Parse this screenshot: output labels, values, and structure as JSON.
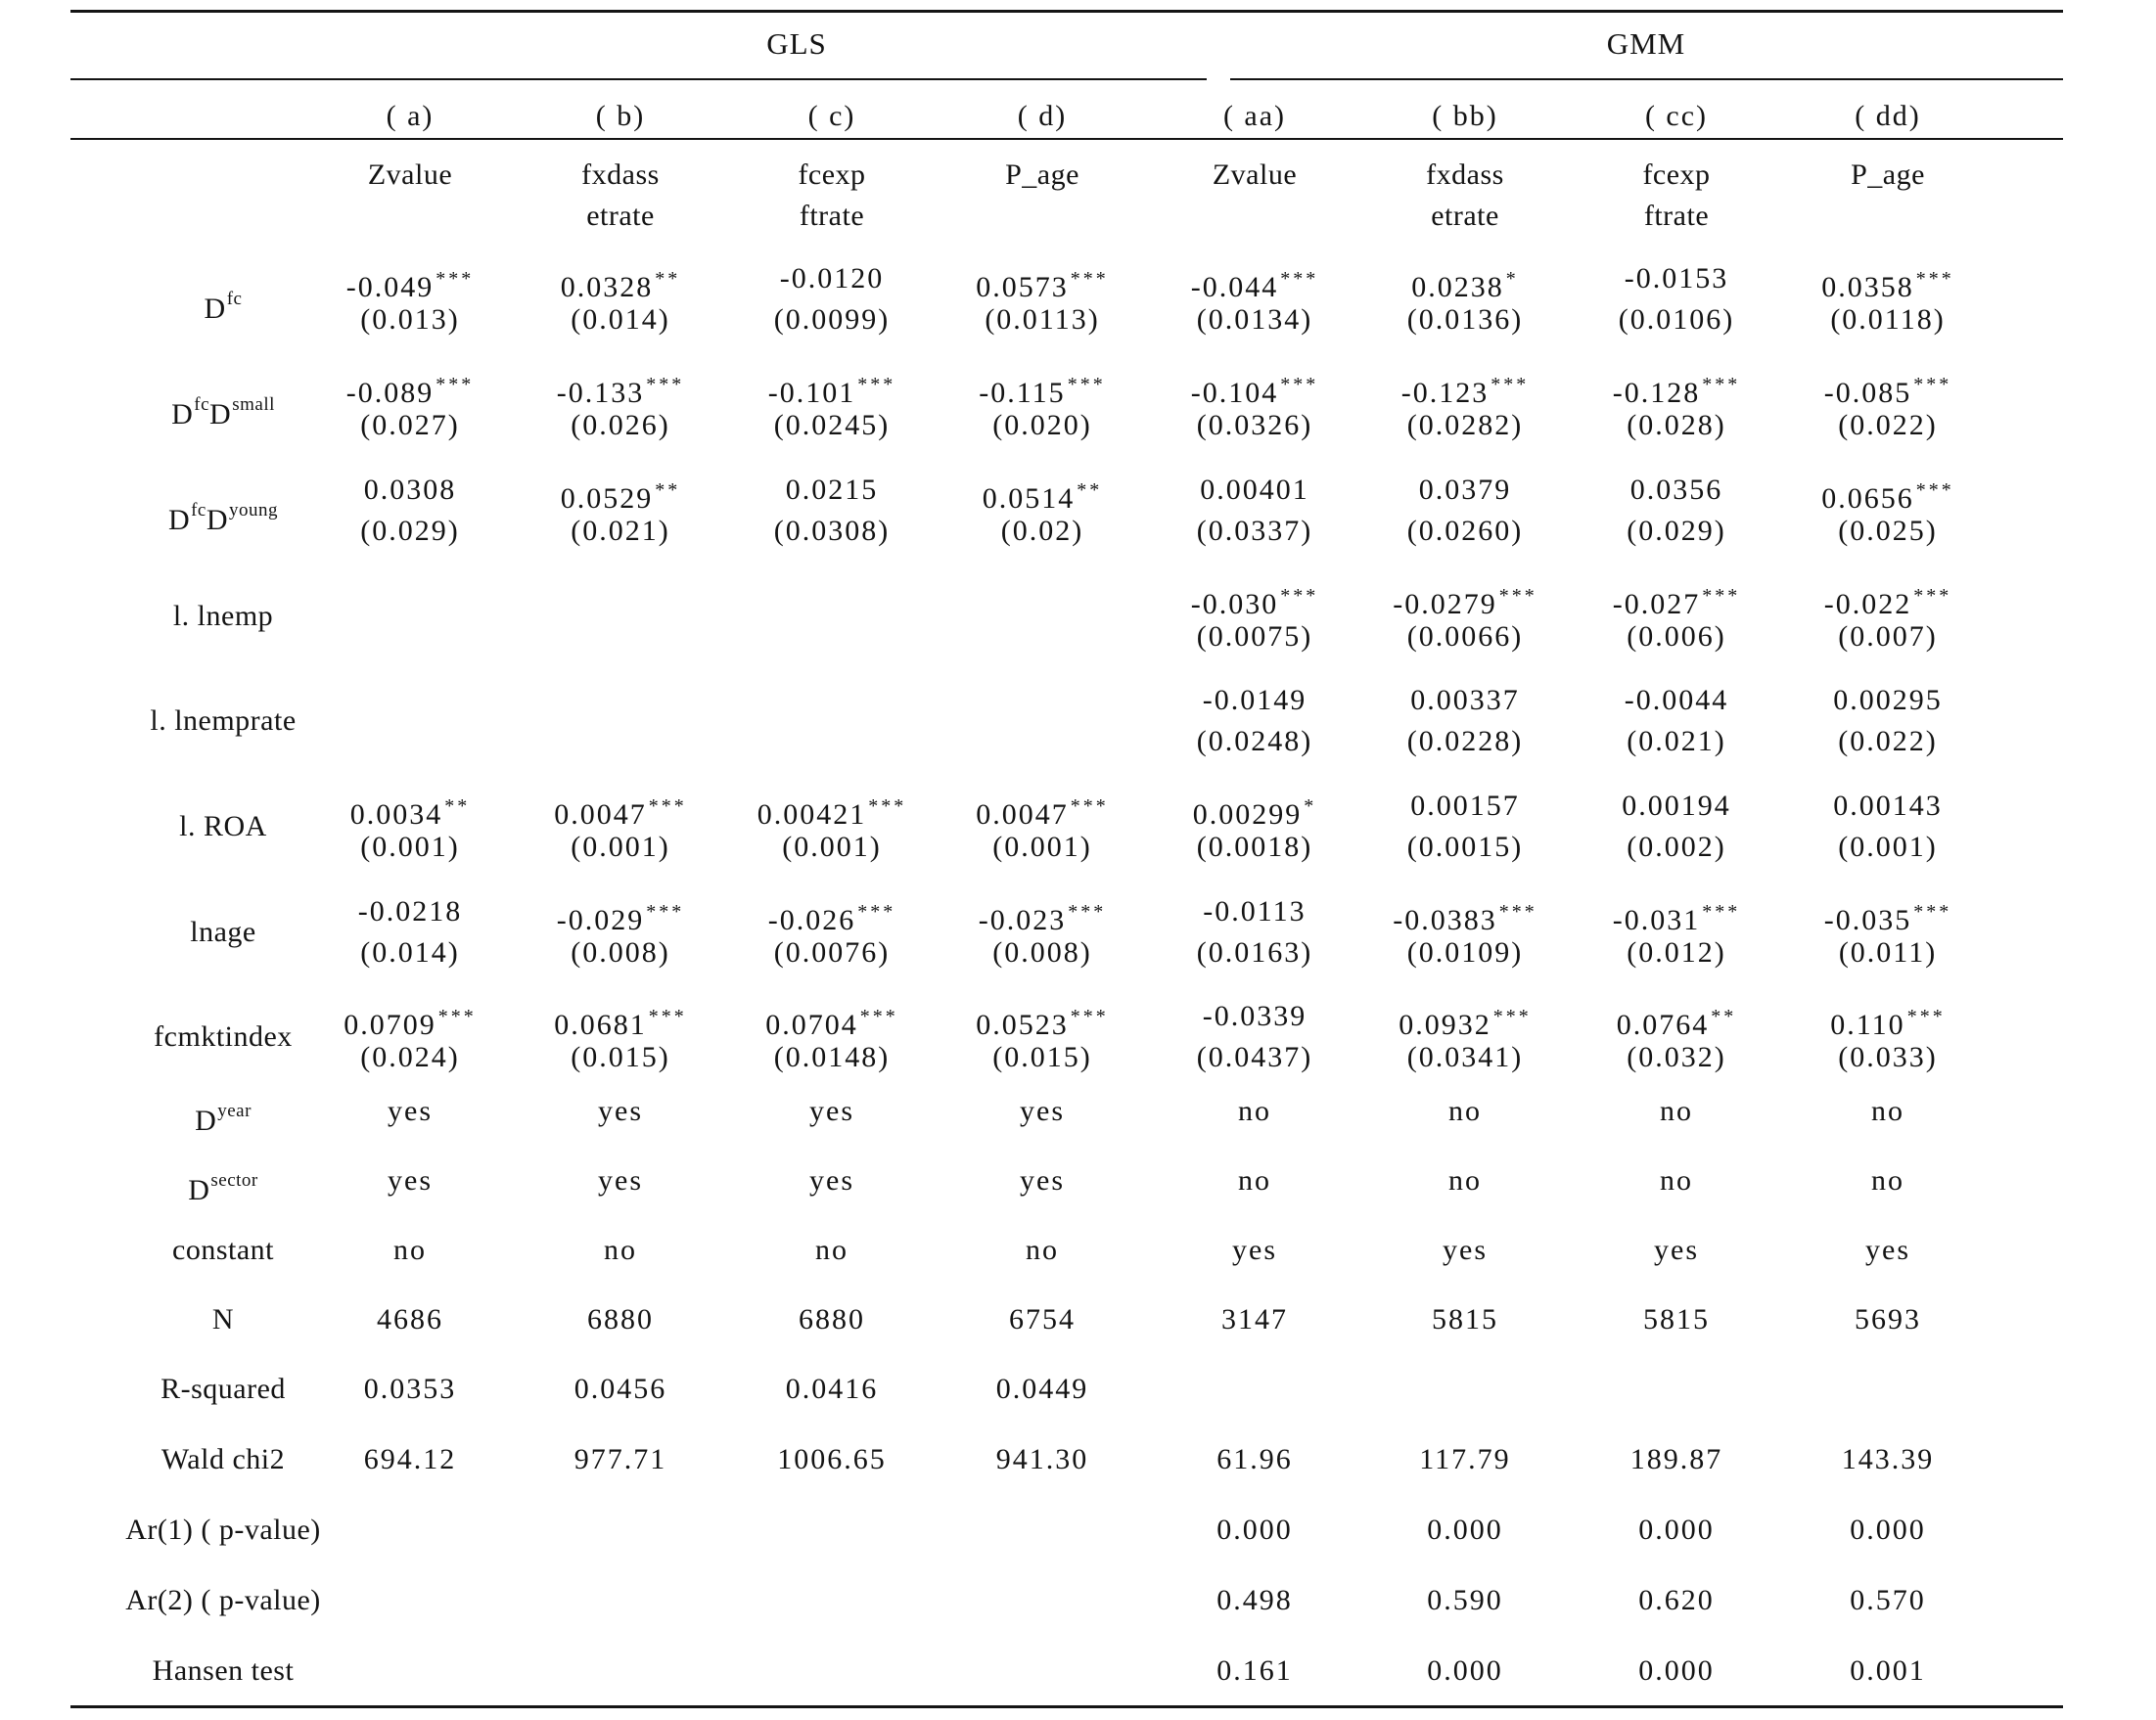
{
  "groups": [
    {
      "label": "GLS"
    },
    {
      "label": "GMM"
    }
  ],
  "columns": [
    {
      "id": "( a)",
      "dep": [
        "Zvalue"
      ]
    },
    {
      "id": "( b)",
      "dep": [
        "fxdass",
        "etrate"
      ]
    },
    {
      "id": "( c)",
      "dep": [
        "fcexp",
        "ftrate"
      ]
    },
    {
      "id": "( d)",
      "dep": [
        "P_age"
      ]
    },
    {
      "id": "( aa)",
      "dep": [
        "Zvalue"
      ]
    },
    {
      "id": "( bb)",
      "dep": [
        "fxdass",
        "etrate"
      ]
    },
    {
      "id": "( cc)",
      "dep": [
        "fcexp",
        "ftrate"
      ]
    },
    {
      "id": "( dd)",
      "dep": [
        "P_age"
      ]
    }
  ],
  "coef_rows": [
    {
      "label": {
        "base": "D",
        "parts": [
          {
            "sup": "fc"
          }
        ]
      },
      "cells": [
        {
          "coef": "-0.049",
          "stars": "***",
          "se": "(0.013)"
        },
        {
          "coef": "0.0328",
          "stars": "**",
          "se": "(0.014)"
        },
        {
          "coef": "-0.0120",
          "stars": "",
          "se": "(0.0099)"
        },
        {
          "coef": "0.0573",
          "stars": "***",
          "se": "(0.0113)"
        },
        {
          "coef": "-0.044",
          "stars": "***",
          "se": "(0.0134)"
        },
        {
          "coef": "0.0238",
          "stars": "*",
          "se": "(0.0136)"
        },
        {
          "coef": "-0.0153",
          "stars": "",
          "se": "(0.0106)"
        },
        {
          "coef": "0.0358",
          "stars": "***",
          "se": "(0.0118)"
        }
      ]
    },
    {
      "label": {
        "base": "D",
        "parts": [
          {
            "sup": "fc"
          },
          {
            "text": "D"
          },
          {
            "sup": "small"
          }
        ]
      },
      "cells": [
        {
          "coef": "-0.089",
          "stars": "***",
          "se": "(0.027)"
        },
        {
          "coef": "-0.133",
          "stars": "***",
          "se": "(0.026)"
        },
        {
          "coef": "-0.101",
          "stars": "***",
          "se": "(0.0245)"
        },
        {
          "coef": "-0.115",
          "stars": "***",
          "se": "(0.020)"
        },
        {
          "coef": "-0.104",
          "stars": "***",
          "se": "(0.0326)"
        },
        {
          "coef": "-0.123",
          "stars": "***",
          "se": "(0.0282)"
        },
        {
          "coef": "-0.128",
          "stars": "***",
          "se": "(0.028)"
        },
        {
          "coef": "-0.085",
          "stars": "***",
          "se": "(0.022)"
        }
      ]
    },
    {
      "label": {
        "base": "D",
        "parts": [
          {
            "sup": "fc"
          },
          {
            "text": "D"
          },
          {
            "sup": "young"
          }
        ]
      },
      "cells": [
        {
          "coef": "0.0308",
          "stars": "",
          "se": "(0.029)"
        },
        {
          "coef": "0.0529",
          "stars": "**",
          "se": "(0.021)"
        },
        {
          "coef": "0.0215",
          "stars": "",
          "se": "(0.0308)"
        },
        {
          "coef": "0.0514",
          "stars": "**",
          "se": "(0.02)"
        },
        {
          "coef": "0.00401",
          "stars": "",
          "se": "(0.0337)"
        },
        {
          "coef": "0.0379",
          "stars": "",
          "se": "(0.0260)"
        },
        {
          "coef": "0.0356",
          "stars": "",
          "se": "(0.029)"
        },
        {
          "coef": "0.0656",
          "stars": "***",
          "se": "(0.025)"
        }
      ]
    },
    {
      "label": {
        "base": "l. lnemp",
        "parts": []
      },
      "cells": [
        null,
        null,
        null,
        null,
        {
          "coef": "-0.030",
          "stars": "***",
          "se": "(0.0075)"
        },
        {
          "coef": "-0.0279",
          "stars": "***",
          "se": "(0.0066)"
        },
        {
          "coef": "-0.027",
          "stars": "***",
          "se": "(0.006)"
        },
        {
          "coef": "-0.022",
          "stars": "***",
          "se": "(0.007)"
        }
      ]
    },
    {
      "label": {
        "base": "l. lnemprate",
        "parts": []
      },
      "cells": [
        null,
        null,
        null,
        null,
        {
          "coef": "-0.0149",
          "stars": "",
          "se": "(0.0248)"
        },
        {
          "coef": "0.00337",
          "stars": "",
          "se": "(0.0228)"
        },
        {
          "coef": "-0.0044",
          "stars": "",
          "se": "(0.021)"
        },
        {
          "coef": "0.00295",
          "stars": "",
          "se": "(0.022)"
        }
      ]
    },
    {
      "label": {
        "base": "l. ROA",
        "parts": []
      },
      "cells": [
        {
          "coef": "0.0034",
          "stars": "**",
          "se": "(0.001)"
        },
        {
          "coef": "0.0047",
          "stars": "***",
          "se": "(0.001)"
        },
        {
          "coef": "0.00421",
          "stars": "***",
          "se": "(0.001)"
        },
        {
          "coef": "0.0047",
          "stars": "***",
          "se": "(0.001)"
        },
        {
          "coef": "0.00299",
          "stars": "*",
          "se": "(0.0018)"
        },
        {
          "coef": "0.00157",
          "stars": "",
          "se": "(0.0015)"
        },
        {
          "coef": "0.00194",
          "stars": "",
          "se": "(0.002)"
        },
        {
          "coef": "0.00143",
          "stars": "",
          "se": "(0.001)"
        }
      ]
    },
    {
      "label": {
        "base": "lnage",
        "parts": []
      },
      "cells": [
        {
          "coef": "-0.0218",
          "stars": "",
          "se": "(0.014)"
        },
        {
          "coef": "-0.029",
          "stars": "***",
          "se": "(0.008)"
        },
        {
          "coef": "-0.026",
          "stars": "***",
          "se": "(0.0076)"
        },
        {
          "coef": "-0.023",
          "stars": "***",
          "se": "(0.008)"
        },
        {
          "coef": "-0.0113",
          "stars": "",
          "se": "(0.0163)"
        },
        {
          "coef": "-0.0383",
          "stars": "***",
          "se": "(0.0109)"
        },
        {
          "coef": "-0.031",
          "stars": "***",
          "se": "(0.012)"
        },
        {
          "coef": "-0.035",
          "stars": "***",
          "se": "(0.011)"
        }
      ]
    },
    {
      "label": {
        "base": "fcmktindex",
        "parts": []
      },
      "cells": [
        {
          "coef": "0.0709",
          "stars": "***",
          "se": "(0.024)"
        },
        {
          "coef": "0.0681",
          "stars": "***",
          "se": "(0.015)"
        },
        {
          "coef": "0.0704",
          "stars": "***",
          "se": "(0.0148)"
        },
        {
          "coef": "0.0523",
          "stars": "***",
          "se": "(0.015)"
        },
        {
          "coef": "-0.0339",
          "stars": "",
          "se": "(0.0437)"
        },
        {
          "coef": "0.0932",
          "stars": "***",
          "se": "(0.0341)"
        },
        {
          "coef": "0.0764",
          "stars": "**",
          "se": "(0.032)"
        },
        {
          "coef": "0.110",
          "stars": "***",
          "se": "(0.033)"
        }
      ]
    }
  ],
  "stat_rows": [
    {
      "label": {
        "base": "D",
        "parts": [
          {
            "sup": "year"
          }
        ]
      },
      "values": [
        "yes",
        "yes",
        "yes",
        "yes",
        "no",
        "no",
        "no",
        "no"
      ]
    },
    {
      "label": {
        "base": "D",
        "parts": [
          {
            "sup": "sector"
          }
        ]
      },
      "values": [
        "yes",
        "yes",
        "yes",
        "yes",
        "no",
        "no",
        "no",
        "no"
      ]
    },
    {
      "label": {
        "base": "constant",
        "parts": []
      },
      "values": [
        "no",
        "no",
        "no",
        "no",
        "yes",
        "yes",
        "yes",
        "yes"
      ]
    },
    {
      "label": {
        "base": "N",
        "parts": []
      },
      "values": [
        "4686",
        "6880",
        "6880",
        "6754",
        "3147",
        "5815",
        "5815",
        "5693"
      ]
    },
    {
      "label": {
        "base": "R-squared",
        "parts": []
      },
      "values": [
        "0.0353",
        "0.0456",
        "0.0416",
        "0.0449",
        "",
        "",
        "",
        ""
      ]
    },
    {
      "label": {
        "base": "Wald chi2",
        "parts": []
      },
      "values": [
        "694.12",
        "977.71",
        "1006.65",
        "941.30",
        "61.96",
        "117.79",
        "189.87",
        "143.39"
      ]
    },
    {
      "label": {
        "base": "Ar(1) ( p-value)",
        "parts": []
      },
      "values": [
        "",
        "",
        "",
        "",
        "0.000",
        "0.000",
        "0.000",
        "0.000"
      ]
    },
    {
      "label": {
        "base": "Ar(2) ( p-value)",
        "parts": []
      },
      "values": [
        "",
        "",
        "",
        "",
        "0.498",
        "0.590",
        "0.620",
        "0.570"
      ]
    },
    {
      "label": {
        "base": "Hansen test",
        "parts": []
      },
      "values": [
        "",
        "",
        "",
        "",
        "0.161",
        "0.000",
        "0.000",
        "0.001"
      ]
    }
  ]
}
